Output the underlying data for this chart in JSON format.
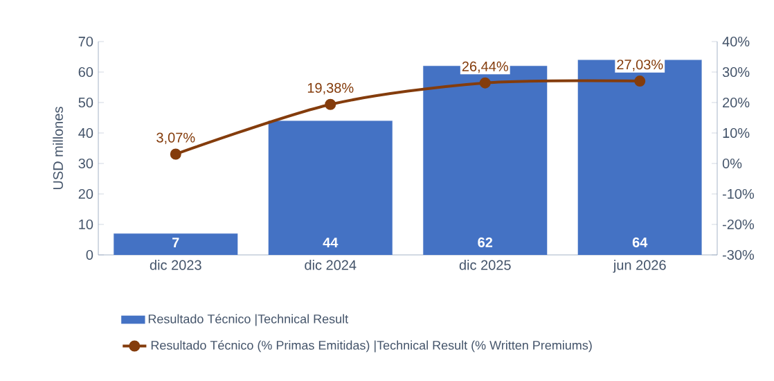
{
  "chart_data": {
    "type": "bar",
    "categories": [
      "dic 2023",
      "dic 2024",
      "dic 2025",
      "jun 2026"
    ],
    "series": [
      {
        "name": "Resultado Técnico |Technical Result",
        "color": "#4472c4",
        "values": [
          7,
          44,
          62,
          64
        ],
        "value_labels": [
          "7",
          "44",
          "62",
          "64"
        ]
      },
      {
        "name": "Resultado Técnico (% Primas Emitidas) |Technical Result (% Written Premiums)",
        "type": "line",
        "axis": "y2",
        "color": "#843c0c",
        "values": [
          3.07,
          19.38,
          26.44,
          27.03
        ],
        "value_labels": [
          "3,07%",
          "19,38%",
          "26,44%",
          "27,03%"
        ],
        "marker": "circle",
        "line_style": "solid"
      }
    ],
    "ylabel": "USD millones",
    "ylim": [
      0,
      70
    ],
    "yticks": [
      0,
      10,
      20,
      30,
      40,
      50,
      60,
      70
    ],
    "y2lim": [
      -30,
      40
    ],
    "y2ticks": [
      {
        "value": -30,
        "label": "-30%"
      },
      {
        "value": -20,
        "label": "-20%"
      },
      {
        "value": -10,
        "label": "-10%"
      },
      {
        "value": 0,
        "label": "0%"
      },
      {
        "value": 10,
        "label": "10%"
      },
      {
        "value": 20,
        "label": "20%"
      },
      {
        "value": 30,
        "label": "30%"
      },
      {
        "value": 40,
        "label": "40%"
      }
    ],
    "grid": false,
    "legend": "bottom"
  }
}
